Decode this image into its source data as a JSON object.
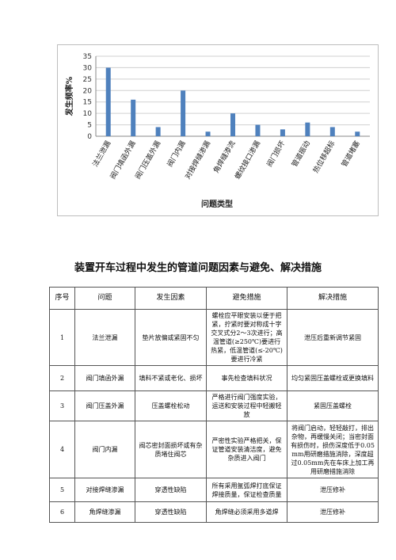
{
  "chart_data": {
    "type": "bar",
    "categories": [
      "法兰泄漏",
      "阀门填函外漏",
      "阀门压盖外漏",
      "阀门内漏",
      "对接焊缝渗漏",
      "角焊缝渗流",
      "螺纹接口渗漏",
      "阀门损坏",
      "管道振动",
      "热位移超标",
      "管道堵塞"
    ],
    "values": [
      30,
      16,
      4,
      20,
      2,
      10,
      5,
      3,
      6,
      4,
      2
    ],
    "ylabel": "发生频率%",
    "xlabel": "问题类型",
    "ylim": [
      0,
      35
    ],
    "yticks": [
      0,
      5,
      10,
      15,
      20,
      25,
      30,
      35
    ],
    "grid": true,
    "bar_color": "#4f81bd"
  },
  "table": {
    "title": "装置开车过程中发生的管道问题因素与避免、解决措施",
    "headers": [
      "序号",
      "问题",
      "发生因素",
      "避免措施",
      "解决措施"
    ],
    "rows": [
      [
        "1",
        "法兰泄漏",
        "垫片放偏或紧固不匀",
        "螺栓应平眼安装以便于把紧，拧紧时要对称成十字交叉式分2～3次进行；高温管道(≥250℃)要进行热紧，低温管道(≤-20℃)要进行冷紧",
        "泄压后重新调节紧固"
      ],
      [
        "2",
        "阀门填函外漏",
        "填料不紧或老化、损坏",
        "事先检查填料状况",
        "均匀紧固压盖螺栓或更换填料"
      ],
      [
        "3",
        "阀门压盖外漏",
        "压盖螺栓松动",
        "严格进行阀门强度实验，运送和安装过程中轻搬轻放",
        "紧固压盖螺栓"
      ],
      [
        "4",
        "阀门内漏",
        "阀芯密封面损坏或有杂质堵住阀芯",
        "严密性实验严格把关，保证管道安装清洁度，避免杂质进入阀门",
        "将阀门启动，轻轻敲打，排出杂物，再缓慢关闭；当密封面有损伤时，损伤深度低于0.05mm用研磨措施消除，深度超过0.05mm先在车床上加工再用研磨措施消除"
      ],
      [
        "5",
        "对接焊缝渗漏",
        "穿透性缺陷",
        "所有采用氩弧焊打底保证焊接质量，保证检查质量",
        "泄压修补"
      ],
      [
        "6",
        "角焊缝渗漏",
        "穿透性缺陷",
        "角焊缝必须采用多道焊",
        "泄压修补"
      ]
    ]
  }
}
